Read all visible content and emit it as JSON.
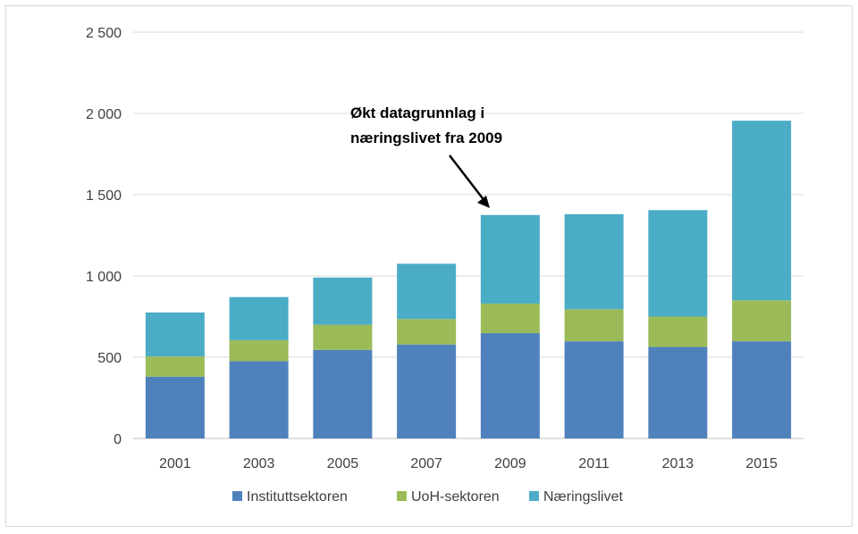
{
  "chart_data": {
    "type": "bar",
    "stacked": true,
    "categories": [
      "2001",
      "2003",
      "2005",
      "2007",
      "2009",
      "2011",
      "2013",
      "2015"
    ],
    "series": [
      {
        "name": "Instituttsektoren",
        "color": "#4f81bd",
        "values": [
          380,
          475,
          545,
          578,
          648,
          598,
          563,
          598
        ]
      },
      {
        "name": "UoH-sektoren",
        "color": "#9bbb59",
        "values": [
          125,
          130,
          155,
          157,
          182,
          197,
          187,
          252
        ]
      },
      {
        "name": "Næringslivet",
        "color": "#4bacc6",
        "values": [
          270,
          265,
          290,
          340,
          545,
          585,
          655,
          1105
        ]
      }
    ],
    "ylim": [
      0,
      2500
    ],
    "yticks": [
      {
        "value": 0,
        "label": "0"
      },
      {
        "value": 500,
        "label": "500"
      },
      {
        "value": 1000,
        "label": "1 000"
      },
      {
        "value": 1500,
        "label": "1 500"
      },
      {
        "value": 2000,
        "label": "2 000"
      },
      {
        "value": 2500,
        "label": "2 500"
      }
    ],
    "grid": true,
    "legend_position": "bottom",
    "annotation": {
      "lines": [
        "Økt datagrunnlag i",
        "næringslivet fra 2009"
      ],
      "target_category": "2009"
    }
  }
}
